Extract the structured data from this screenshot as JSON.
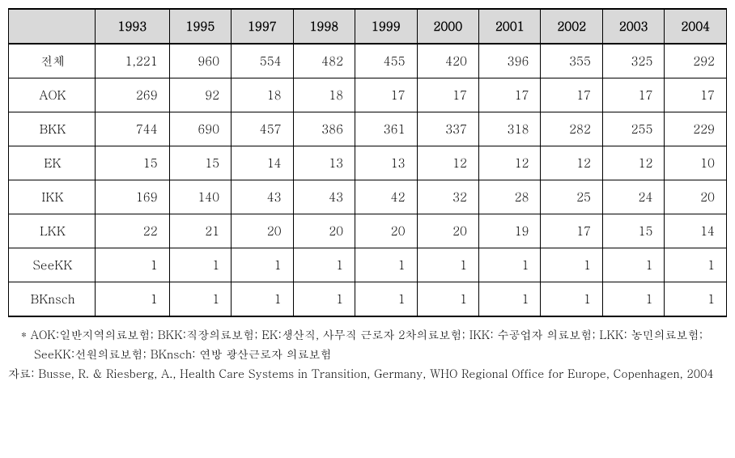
{
  "table": {
    "columns": [
      "",
      "1993",
      "1995",
      "1997",
      "1998",
      "1999",
      "2000",
      "2001",
      "2002",
      "2003",
      "2004"
    ],
    "rows": [
      {
        "label": "전체",
        "values": [
          "1,221",
          "960",
          "554",
          "482",
          "455",
          "420",
          "396",
          "355",
          "325",
          "292"
        ]
      },
      {
        "label": "AOK",
        "values": [
          "269",
          "92",
          "18",
          "18",
          "17",
          "17",
          "17",
          "17",
          "17",
          "17"
        ]
      },
      {
        "label": "BKK",
        "values": [
          "744",
          "690",
          "457",
          "386",
          "361",
          "337",
          "318",
          "282",
          "255",
          "229"
        ]
      },
      {
        "label": "EK",
        "values": [
          "15",
          "15",
          "14",
          "13",
          "13",
          "12",
          "12",
          "12",
          "12",
          "10"
        ]
      },
      {
        "label": "IKK",
        "values": [
          "169",
          "140",
          "43",
          "43",
          "42",
          "32",
          "28",
          "25",
          "24",
          "20"
        ]
      },
      {
        "label": "LKK",
        "values": [
          "22",
          "21",
          "20",
          "20",
          "20",
          "20",
          "19",
          "17",
          "15",
          "14"
        ]
      },
      {
        "label": "SeeKK",
        "values": [
          "1",
          "1",
          "1",
          "1",
          "1",
          "1",
          "1",
          "1",
          "1",
          "1"
        ]
      },
      {
        "label": "BKnsch",
        "values": [
          "1",
          "1",
          "1",
          "1",
          "1",
          "1",
          "1",
          "1",
          "1",
          "1"
        ]
      }
    ],
    "header_bg": "#d9d9d9",
    "border_color": "#000000",
    "fontsize": 15
  },
  "notes": {
    "note1": "* AOK:일반지역의료보험; BKK:직장의료보험; EK:생산직, 사무직 근로자 2차의료보험; IKK: 수공업자 의료보험; LKK: 농민의료보험; SeeKK:선원의료보험; BKnsch: 연방 광산근로자 의료보험",
    "source": "자료: Busse, R. & Riesberg, A., Health Care Systems in Transition, Germany, WHO Regional Office for Europe, Copenhagen, 2004"
  }
}
